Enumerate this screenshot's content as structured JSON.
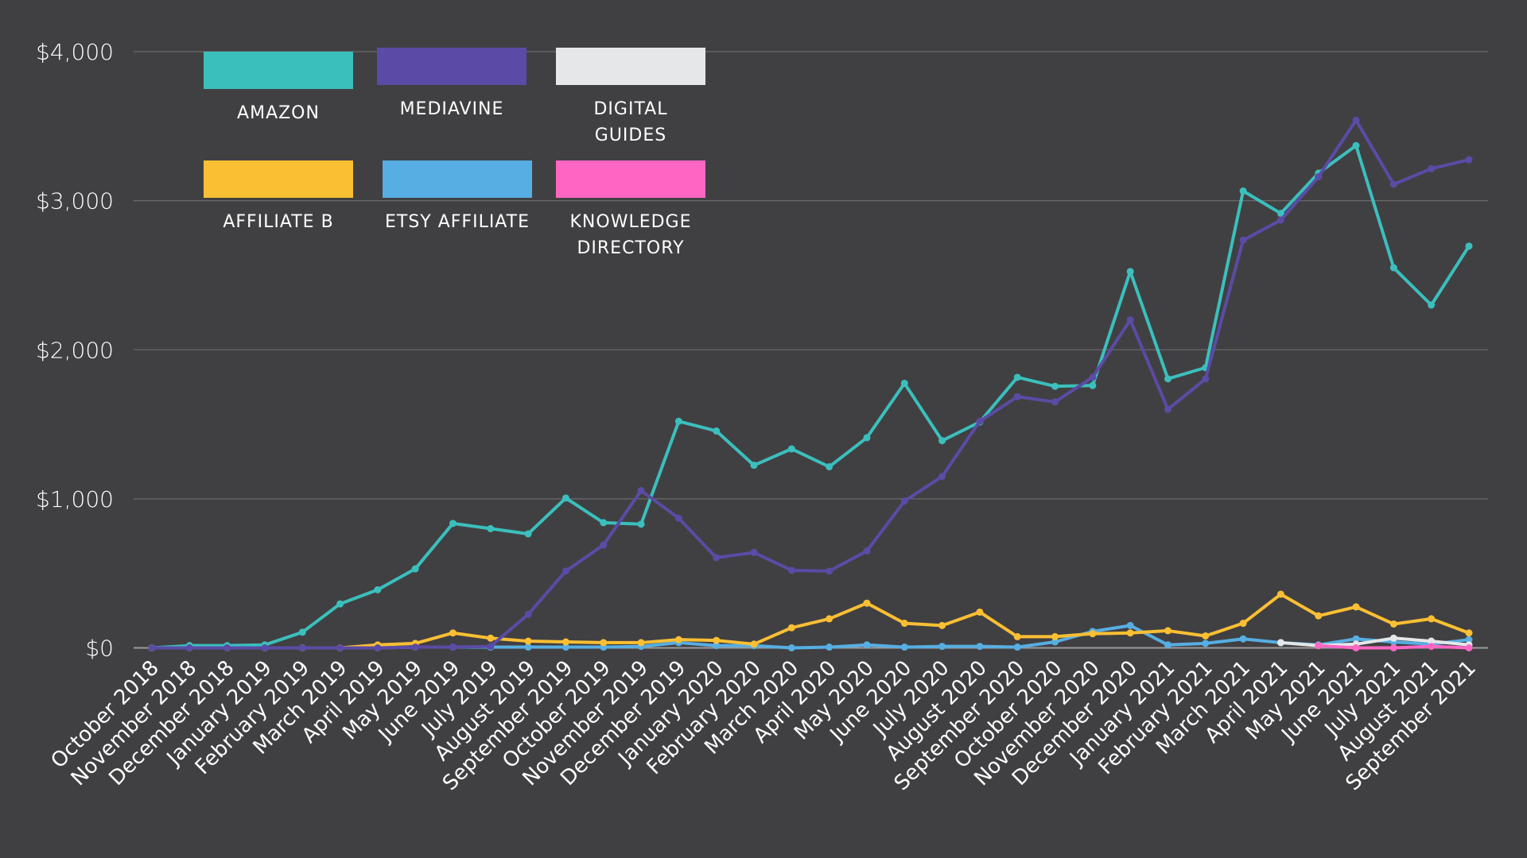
{
  "chart_data": {
    "type": "line",
    "title": "",
    "xlabel": "",
    "ylabel": "",
    "ylim": [
      0,
      4000
    ],
    "yticks": [
      "$0",
      "$1,000",
      "$2,000",
      "$3,000",
      "$4,000"
    ],
    "ytick_values": [
      0,
      1000,
      2000,
      3000,
      4000
    ],
    "grid": true,
    "legend_position": "top-left",
    "categories": [
      "October 2018",
      "November 2018",
      "December 2018",
      "January 2019",
      "February 2019",
      "March 2019",
      "April 2019",
      "May 2019",
      "June 2019",
      "July 2019",
      "August 2019",
      "September 2019",
      "October 2019",
      "November 2019",
      "December 2019",
      "January 2020",
      "February 2020",
      "March 2020",
      "April 2020",
      "May 2020",
      "June 2020",
      "July 2020",
      "August 2020",
      "September 2020",
      "October 2020",
      "November 2020",
      "December 2020",
      "January 2021",
      "February 2021",
      "March 2021",
      "April 2021",
      "May 2021",
      "June 2021",
      "July 2021",
      "August 2021",
      "September 2021"
    ],
    "series": [
      {
        "name": "AMAZON",
        "color": "#3bbfbd",
        "values": [
          0,
          15,
          15,
          20,
          105,
          295,
          390,
          530,
          835,
          800,
          765,
          1005,
          840,
          830,
          1520,
          1455,
          1225,
          1335,
          1215,
          1410,
          1775,
          1390,
          1515,
          1815,
          1755,
          1760,
          2525,
          1805,
          1880,
          3065,
          2915,
          3185,
          3370,
          2550,
          2300,
          2695
        ]
      },
      {
        "name": "MEDIAVINE",
        "color": "#5b4ba6",
        "values": [
          0,
          0,
          0,
          0,
          0,
          0,
          0,
          5,
          5,
          10,
          225,
          515,
          690,
          1055,
          870,
          605,
          640,
          520,
          515,
          650,
          985,
          1150,
          1520,
          1685,
          1650,
          1815,
          2200,
          1600,
          1805,
          2735,
          2870,
          3160,
          3540,
          3110,
          3215,
          3275
        ]
      },
      {
        "name": "DIGITAL\nGUIDES",
        "color": "#e6e7e8",
        "values": [
          null,
          null,
          null,
          null,
          null,
          null,
          null,
          null,
          null,
          null,
          null,
          null,
          null,
          null,
          null,
          null,
          null,
          null,
          null,
          null,
          null,
          null,
          null,
          null,
          null,
          null,
          null,
          null,
          null,
          null,
          35,
          15,
          25,
          65,
          45,
          20
        ]
      },
      {
        "name": "AFFILIATE B",
        "color": "#fbbf33",
        "values": [
          0,
          0,
          0,
          0,
          0,
          0,
          20,
          30,
          100,
          65,
          45,
          40,
          35,
          35,
          55,
          50,
          25,
          135,
          195,
          300,
          165,
          150,
          240,
          75,
          75,
          95,
          100,
          115,
          80,
          165,
          360,
          215,
          275,
          160,
          195,
          100
        ]
      },
      {
        "name": "ETSY AFFILIATE",
        "color": "#57aee2",
        "values": [
          0,
          5,
          5,
          0,
          0,
          0,
          0,
          5,
          5,
          5,
          5,
          5,
          5,
          10,
          35,
          15,
          15,
          0,
          5,
          20,
          5,
          10,
          10,
          5,
          40,
          110,
          150,
          20,
          30,
          60,
          35,
          20,
          60,
          40,
          25,
          55
        ]
      },
      {
        "name": "KNOWLEDGE\nDIRECTORY",
        "color": "#ff66c4",
        "values": [
          null,
          null,
          null,
          null,
          null,
          null,
          null,
          null,
          null,
          null,
          null,
          null,
          null,
          null,
          null,
          null,
          null,
          null,
          null,
          null,
          null,
          null,
          null,
          null,
          null,
          null,
          null,
          null,
          null,
          null,
          null,
          15,
          0,
          0,
          10,
          0
        ]
      }
    ]
  }
}
